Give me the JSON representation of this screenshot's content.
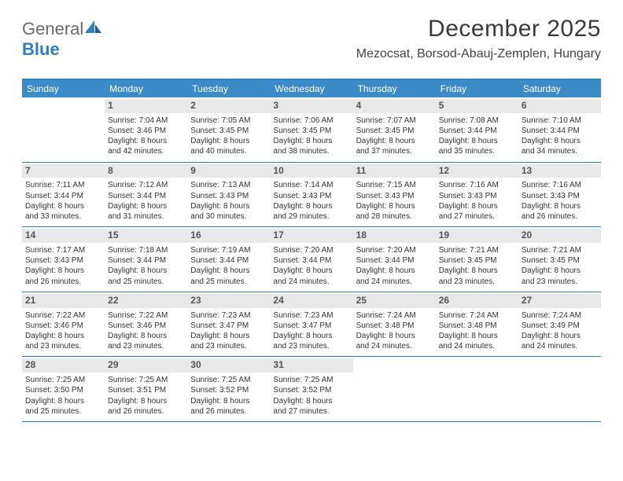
{
  "brand": {
    "part1": "General",
    "part2": "Blue"
  },
  "title": "December 2025",
  "subtitle": "Mezocsat, Borsod-Abauj-Zemplen, Hungary",
  "colors": {
    "header_blue": "#3b8bc9",
    "rule_blue": "#2f7fbf",
    "daynum_bg": "#e8e8e8",
    "text": "#333333"
  },
  "dow": [
    "Sunday",
    "Monday",
    "Tuesday",
    "Wednesday",
    "Thursday",
    "Friday",
    "Saturday"
  ],
  "weeks": [
    [
      {
        "n": "",
        "sr": "",
        "ss": "",
        "dl1": "",
        "dl2": ""
      },
      {
        "n": "1",
        "sr": "Sunrise: 7:04 AM",
        "ss": "Sunset: 3:46 PM",
        "dl1": "Daylight: 8 hours",
        "dl2": "and 42 minutes."
      },
      {
        "n": "2",
        "sr": "Sunrise: 7:05 AM",
        "ss": "Sunset: 3:45 PM",
        "dl1": "Daylight: 8 hours",
        "dl2": "and 40 minutes."
      },
      {
        "n": "3",
        "sr": "Sunrise: 7:06 AM",
        "ss": "Sunset: 3:45 PM",
        "dl1": "Daylight: 8 hours",
        "dl2": "and 38 minutes."
      },
      {
        "n": "4",
        "sr": "Sunrise: 7:07 AM",
        "ss": "Sunset: 3:45 PM",
        "dl1": "Daylight: 8 hours",
        "dl2": "and 37 minutes."
      },
      {
        "n": "5",
        "sr": "Sunrise: 7:08 AM",
        "ss": "Sunset: 3:44 PM",
        "dl1": "Daylight: 8 hours",
        "dl2": "and 35 minutes."
      },
      {
        "n": "6",
        "sr": "Sunrise: 7:10 AM",
        "ss": "Sunset: 3:44 PM",
        "dl1": "Daylight: 8 hours",
        "dl2": "and 34 minutes."
      }
    ],
    [
      {
        "n": "7",
        "sr": "Sunrise: 7:11 AM",
        "ss": "Sunset: 3:44 PM",
        "dl1": "Daylight: 8 hours",
        "dl2": "and 33 minutes."
      },
      {
        "n": "8",
        "sr": "Sunrise: 7:12 AM",
        "ss": "Sunset: 3:44 PM",
        "dl1": "Daylight: 8 hours",
        "dl2": "and 31 minutes."
      },
      {
        "n": "9",
        "sr": "Sunrise: 7:13 AM",
        "ss": "Sunset: 3:43 PM",
        "dl1": "Daylight: 8 hours",
        "dl2": "and 30 minutes."
      },
      {
        "n": "10",
        "sr": "Sunrise: 7:14 AM",
        "ss": "Sunset: 3:43 PM",
        "dl1": "Daylight: 8 hours",
        "dl2": "and 29 minutes."
      },
      {
        "n": "11",
        "sr": "Sunrise: 7:15 AM",
        "ss": "Sunset: 3:43 PM",
        "dl1": "Daylight: 8 hours",
        "dl2": "and 28 minutes."
      },
      {
        "n": "12",
        "sr": "Sunrise: 7:16 AM",
        "ss": "Sunset: 3:43 PM",
        "dl1": "Daylight: 8 hours",
        "dl2": "and 27 minutes."
      },
      {
        "n": "13",
        "sr": "Sunrise: 7:16 AM",
        "ss": "Sunset: 3:43 PM",
        "dl1": "Daylight: 8 hours",
        "dl2": "and 26 minutes."
      }
    ],
    [
      {
        "n": "14",
        "sr": "Sunrise: 7:17 AM",
        "ss": "Sunset: 3:43 PM",
        "dl1": "Daylight: 8 hours",
        "dl2": "and 26 minutes."
      },
      {
        "n": "15",
        "sr": "Sunrise: 7:18 AM",
        "ss": "Sunset: 3:44 PM",
        "dl1": "Daylight: 8 hours",
        "dl2": "and 25 minutes."
      },
      {
        "n": "16",
        "sr": "Sunrise: 7:19 AM",
        "ss": "Sunset: 3:44 PM",
        "dl1": "Daylight: 8 hours",
        "dl2": "and 25 minutes."
      },
      {
        "n": "17",
        "sr": "Sunrise: 7:20 AM",
        "ss": "Sunset: 3:44 PM",
        "dl1": "Daylight: 8 hours",
        "dl2": "and 24 minutes."
      },
      {
        "n": "18",
        "sr": "Sunrise: 7:20 AM",
        "ss": "Sunset: 3:44 PM",
        "dl1": "Daylight: 8 hours",
        "dl2": "and 24 minutes."
      },
      {
        "n": "19",
        "sr": "Sunrise: 7:21 AM",
        "ss": "Sunset: 3:45 PM",
        "dl1": "Daylight: 8 hours",
        "dl2": "and 23 minutes."
      },
      {
        "n": "20",
        "sr": "Sunrise: 7:21 AM",
        "ss": "Sunset: 3:45 PM",
        "dl1": "Daylight: 8 hours",
        "dl2": "and 23 minutes."
      }
    ],
    [
      {
        "n": "21",
        "sr": "Sunrise: 7:22 AM",
        "ss": "Sunset: 3:46 PM",
        "dl1": "Daylight: 8 hours",
        "dl2": "and 23 minutes."
      },
      {
        "n": "22",
        "sr": "Sunrise: 7:22 AM",
        "ss": "Sunset: 3:46 PM",
        "dl1": "Daylight: 8 hours",
        "dl2": "and 23 minutes."
      },
      {
        "n": "23",
        "sr": "Sunrise: 7:23 AM",
        "ss": "Sunset: 3:47 PM",
        "dl1": "Daylight: 8 hours",
        "dl2": "and 23 minutes."
      },
      {
        "n": "24",
        "sr": "Sunrise: 7:23 AM",
        "ss": "Sunset: 3:47 PM",
        "dl1": "Daylight: 8 hours",
        "dl2": "and 23 minutes."
      },
      {
        "n": "25",
        "sr": "Sunrise: 7:24 AM",
        "ss": "Sunset: 3:48 PM",
        "dl1": "Daylight: 8 hours",
        "dl2": "and 24 minutes."
      },
      {
        "n": "26",
        "sr": "Sunrise: 7:24 AM",
        "ss": "Sunset: 3:48 PM",
        "dl1": "Daylight: 8 hours",
        "dl2": "and 24 minutes."
      },
      {
        "n": "27",
        "sr": "Sunrise: 7:24 AM",
        "ss": "Sunset: 3:49 PM",
        "dl1": "Daylight: 8 hours",
        "dl2": "and 24 minutes."
      }
    ],
    [
      {
        "n": "28",
        "sr": "Sunrise: 7:25 AM",
        "ss": "Sunset: 3:50 PM",
        "dl1": "Daylight: 8 hours",
        "dl2": "and 25 minutes."
      },
      {
        "n": "29",
        "sr": "Sunrise: 7:25 AM",
        "ss": "Sunset: 3:51 PM",
        "dl1": "Daylight: 8 hours",
        "dl2": "and 26 minutes."
      },
      {
        "n": "30",
        "sr": "Sunrise: 7:25 AM",
        "ss": "Sunset: 3:52 PM",
        "dl1": "Daylight: 8 hours",
        "dl2": "and 26 minutes."
      },
      {
        "n": "31",
        "sr": "Sunrise: 7:25 AM",
        "ss": "Sunset: 3:52 PM",
        "dl1": "Daylight: 8 hours",
        "dl2": "and 27 minutes."
      },
      {
        "n": "",
        "sr": "",
        "ss": "",
        "dl1": "",
        "dl2": ""
      },
      {
        "n": "",
        "sr": "",
        "ss": "",
        "dl1": "",
        "dl2": ""
      },
      {
        "n": "",
        "sr": "",
        "ss": "",
        "dl1": "",
        "dl2": ""
      }
    ]
  ]
}
